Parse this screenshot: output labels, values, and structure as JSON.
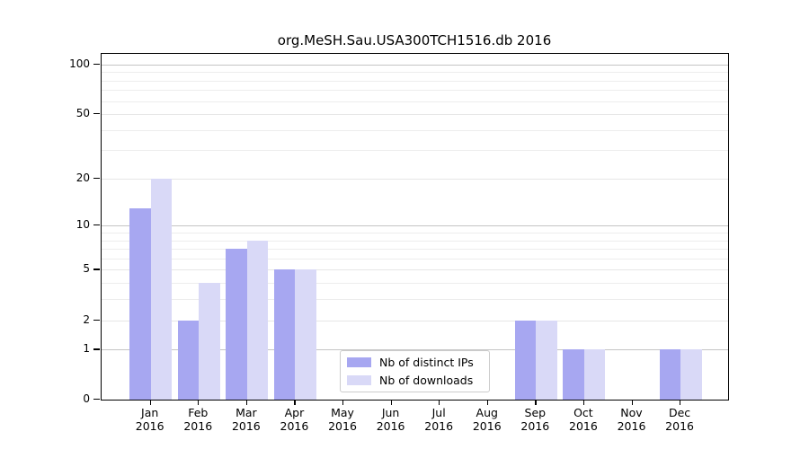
{
  "chart_data": {
    "type": "bar",
    "title": "org.MeSH.Sau.USA300TCH1516.db 2016",
    "xlabel": "",
    "ylabel": "",
    "categories": [
      "Jan",
      "Feb",
      "Mar",
      "Apr",
      "May",
      "Jun",
      "Jul",
      "Aug",
      "Sep",
      "Oct",
      "Nov",
      "Dec"
    ],
    "category_year": "2016",
    "series": [
      {
        "name": "Nb of distinct IPs",
        "color": "#a7a7f1",
        "values": [
          13,
          2,
          7,
          5,
          0,
          0,
          0,
          0,
          2,
          1,
          0,
          1
        ]
      },
      {
        "name": "Nb of downloads",
        "color": "#d9d9f7",
        "values": [
          20,
          4,
          8,
          5,
          0,
          0,
          0,
          0,
          2,
          1,
          0,
          1
        ]
      }
    ],
    "y_axis": {
      "scale": "log10(1+y)",
      "tick_values": [
        0,
        1,
        2,
        5,
        10,
        20,
        50,
        100
      ],
      "dark_grid_values": [
        1,
        10,
        100
      ],
      "light_grid_values": [
        2,
        5,
        20,
        50
      ],
      "minor_grid_values": [
        3,
        4,
        6,
        7,
        8,
        9,
        30,
        40,
        60,
        70,
        80,
        90
      ],
      "ylim_top_value": 113
    },
    "legend": {
      "position": "bottom-center",
      "entries": [
        "Nb of distinct IPs",
        "Nb of downloads"
      ]
    },
    "grid": "on"
  },
  "colors": {
    "axis": "#000000",
    "grid_dark": "#c4c4c4",
    "grid_light": "#e7e7e7",
    "grid_minor": "#ededed",
    "background": "#ffffff"
  }
}
